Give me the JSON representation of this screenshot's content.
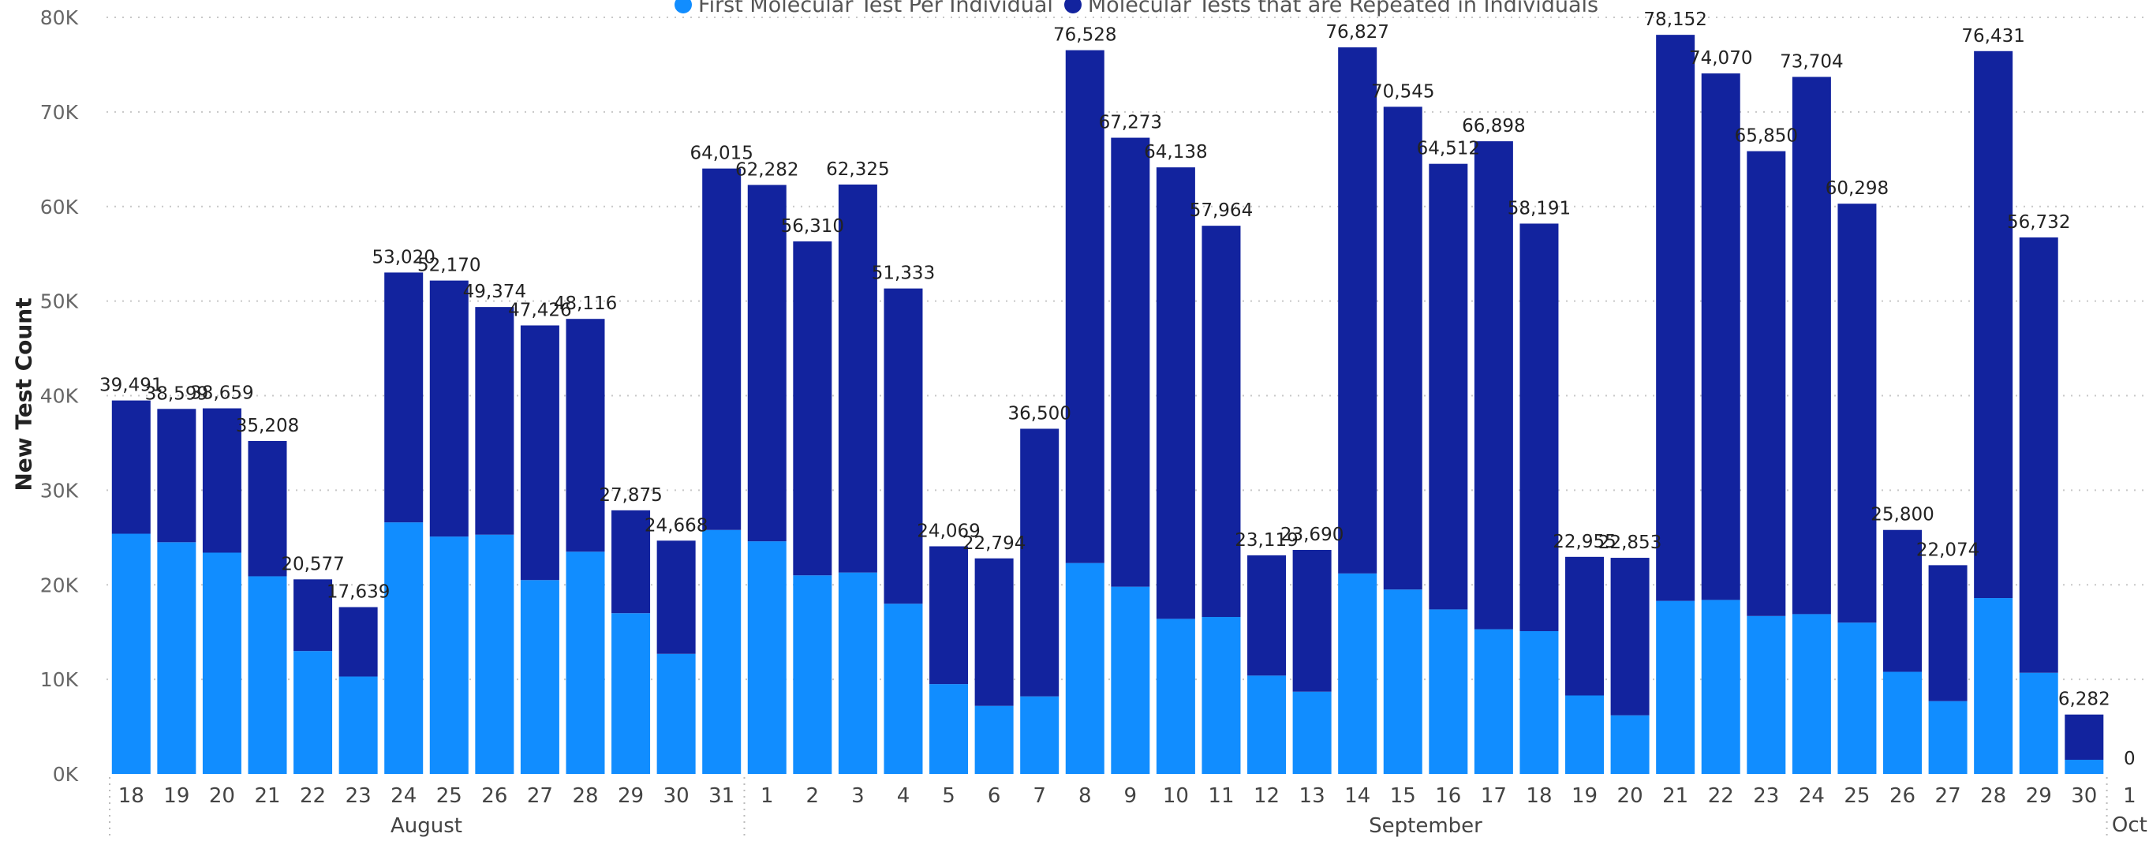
{
  "chart_data": {
    "type": "bar",
    "stacked": true,
    "title": "",
    "xlabel": "",
    "ylabel": "New Test Count",
    "ylim": [
      0,
      80000
    ],
    "grid": true,
    "legend_position": "top-center",
    "y_ticks": [
      "0K",
      "10K",
      "20K",
      "30K",
      "40K",
      "50K",
      "60K",
      "70K",
      "80K"
    ],
    "y_tick_values": [
      0,
      10000,
      20000,
      30000,
      40000,
      50000,
      60000,
      70000,
      80000
    ],
    "categories": [
      "18",
      "19",
      "20",
      "21",
      "22",
      "23",
      "24",
      "25",
      "26",
      "27",
      "28",
      "29",
      "30",
      "31",
      "1",
      "2",
      "3",
      "4",
      "5",
      "6",
      "7",
      "8",
      "9",
      "10",
      "11",
      "12",
      "13",
      "14",
      "15",
      "16",
      "17",
      "18",
      "19",
      "20",
      "21",
      "22",
      "23",
      "24",
      "25",
      "26",
      "27",
      "28",
      "29",
      "30",
      "1"
    ],
    "months": [
      {
        "label": "August",
        "start": 0,
        "end": 13
      },
      {
        "label": "September",
        "start": 14,
        "end": 43
      },
      {
        "label": "Oct",
        "start": 44,
        "end": 44
      }
    ],
    "series": [
      {
        "name": "First Molecular Test Per Individual",
        "color": "#118DFF",
        "values": [
          25400,
          24500,
          23400,
          20900,
          13000,
          10300,
          26600,
          25100,
          25300,
          20500,
          23500,
          17000,
          12700,
          25800,
          24600,
          21000,
          21300,
          18000,
          9500,
          7200,
          8200,
          22300,
          19800,
          16400,
          16600,
          10400,
          8700,
          21200,
          19500,
          17400,
          15300,
          15100,
          8300,
          6200,
          18300,
          18400,
          16700,
          16900,
          16000,
          10800,
          7700,
          18600,
          10700,
          1500,
          0
        ]
      },
      {
        "name": "Molecular Tests that are Repeated in Individuals",
        "color": "#12239E",
        "values": [
          14091,
          14099,
          15259,
          14308,
          7577,
          7339,
          26420,
          27070,
          24074,
          26926,
          24616,
          10875,
          11968,
          38215,
          37682,
          35310,
          41025,
          33333,
          14569,
          15594,
          28300,
          54228,
          47473,
          47738,
          41364,
          12719,
          14990,
          55627,
          51045,
          47112,
          51598,
          43091,
          14655,
          16653,
          59852,
          55670,
          49150,
          56804,
          44298,
          15000,
          14374,
          57831,
          46032,
          4782,
          0
        ]
      }
    ],
    "totals": [
      39491,
      38599,
      38659,
      35208,
      20577,
      17639,
      53020,
      52170,
      49374,
      47426,
      48116,
      27875,
      24668,
      64015,
      62282,
      56310,
      62325,
      51333,
      24069,
      22794,
      36500,
      76528,
      67273,
      64138,
      57964,
      23119,
      23690,
      76827,
      70545,
      64512,
      66898,
      58191,
      22955,
      22853,
      78152,
      74070,
      65850,
      73704,
      60298,
      25800,
      22074,
      76431,
      56732,
      6282,
      0
    ],
    "total_labels": [
      "39,491",
      "38,599",
      "38,659",
      "35,208",
      "20,577",
      "17,639",
      "53,020",
      "52,170",
      "49,374",
      "47,426",
      "48,116",
      "27,875",
      "24,668",
      "64,015",
      "62,282",
      "56,310",
      "62,325",
      "51,333",
      "24,069",
      "22,794",
      "36,500",
      "76,528",
      "67,273",
      "64,138",
      "57,964",
      "23,119",
      "23,690",
      "76,827",
      "70,545",
      "64,512",
      "66,898",
      "58,191",
      "22,955",
      "22,853",
      "78,152",
      "74,070",
      "65,850",
      "73,704",
      "60,298",
      "25,800",
      "22,074",
      "76,431",
      "56,732",
      "6,282",
      "0"
    ]
  }
}
